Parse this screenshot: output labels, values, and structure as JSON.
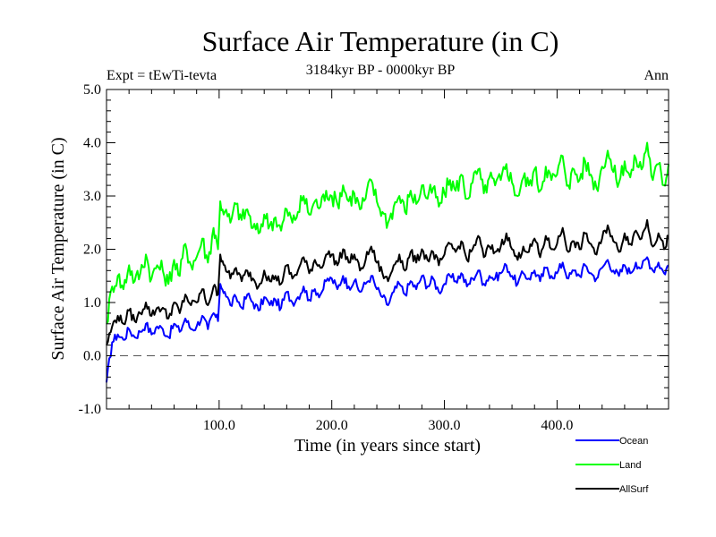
{
  "chart_data": {
    "type": "line",
    "title": "Surface Air Temperature (in C)",
    "subtitle": "3184kyr BP - 0000kyr BP",
    "left_annotation": "Expt = tEwTi-tevta",
    "right_annotation": "Ann",
    "xlabel": "Time (in years since start)",
    "ylabel": "Surface Air Temperature (in C)",
    "xlim": [
      0,
      499
    ],
    "ylim": [
      -1.0,
      5.0
    ],
    "xticks": [
      100,
      200,
      300,
      400
    ],
    "xtick_labels": [
      "100.0",
      "200.0",
      "300.0",
      "400.0"
    ],
    "x_minor_step": 20,
    "yticks": [
      -1.0,
      0.0,
      1.0,
      2.0,
      3.0,
      4.0,
      5.0
    ],
    "ytick_labels": [
      "-1.0",
      "0.0",
      "1.0",
      "2.0",
      "3.0",
      "4.0",
      "5.0"
    ],
    "y_minor_step": 0.2,
    "reference_line": {
      "y": 0.0,
      "style": "dashed",
      "color": "#555555"
    },
    "legend_placement": "bottom-right",
    "x": [
      0,
      5,
      10,
      15,
      20,
      25,
      30,
      35,
      40,
      45,
      50,
      55,
      60,
      65,
      70,
      75,
      80,
      85,
      90,
      95,
      99,
      101,
      105,
      110,
      115,
      120,
      125,
      130,
      135,
      140,
      145,
      150,
      155,
      160,
      165,
      170,
      175,
      180,
      185,
      190,
      195,
      200,
      205,
      210,
      215,
      220,
      225,
      230,
      235,
      240,
      245,
      250,
      255,
      260,
      265,
      270,
      275,
      280,
      285,
      290,
      295,
      300,
      305,
      310,
      315,
      320,
      325,
      330,
      335,
      340,
      345,
      350,
      355,
      360,
      365,
      370,
      375,
      380,
      385,
      390,
      395,
      400,
      405,
      410,
      415,
      420,
      425,
      430,
      435,
      440,
      445,
      450,
      455,
      460,
      465,
      470,
      475,
      480,
      485,
      490,
      495,
      499
    ],
    "series": [
      {
        "name": "Ocean",
        "color": "#0000ff",
        "values": [
          -0.5,
          0.25,
          0.4,
          0.3,
          0.5,
          0.35,
          0.45,
          0.6,
          0.4,
          0.55,
          0.5,
          0.35,
          0.6,
          0.45,
          0.7,
          0.5,
          0.55,
          0.75,
          0.5,
          0.8,
          0.65,
          1.35,
          1.2,
          0.95,
          1.1,
          0.9,
          1.15,
          1.0,
          0.85,
          1.1,
          0.95,
          1.05,
          0.9,
          1.2,
          1.0,
          1.1,
          1.3,
          1.05,
          1.25,
          1.15,
          1.4,
          1.45,
          1.25,
          1.5,
          1.3,
          1.4,
          1.2,
          1.35,
          1.5,
          1.25,
          1.1,
          0.95,
          1.2,
          1.35,
          1.15,
          1.4,
          1.25,
          1.5,
          1.3,
          1.45,
          1.2,
          1.35,
          1.5,
          1.4,
          1.55,
          1.3,
          1.45,
          1.6,
          1.35,
          1.5,
          1.45,
          1.55,
          1.7,
          1.5,
          1.35,
          1.55,
          1.45,
          1.6,
          1.4,
          1.65,
          1.5,
          1.55,
          1.75,
          1.45,
          1.6,
          1.5,
          1.7,
          1.55,
          1.45,
          1.65,
          1.8,
          1.6,
          1.5,
          1.7,
          1.55,
          1.75,
          1.65,
          1.85,
          1.6,
          1.75,
          1.55,
          1.7
        ]
      },
      {
        "name": "Land",
        "color": "#00ff00",
        "values": [
          0.6,
          1.3,
          1.5,
          1.25,
          1.7,
          1.4,
          1.55,
          1.9,
          1.45,
          1.7,
          1.6,
          1.35,
          1.8,
          1.5,
          2.1,
          1.7,
          1.85,
          2.2,
          1.75,
          2.4,
          2.0,
          2.9,
          2.7,
          2.5,
          2.85,
          2.55,
          2.75,
          2.4,
          2.3,
          2.65,
          2.45,
          2.6,
          2.35,
          2.75,
          2.5,
          2.7,
          3.0,
          2.65,
          2.9,
          2.8,
          3.1,
          3.0,
          2.85,
          3.2,
          2.9,
          3.05,
          2.75,
          2.95,
          3.3,
          2.9,
          2.7,
          2.5,
          2.8,
          3.0,
          2.7,
          3.1,
          2.85,
          3.2,
          2.95,
          3.15,
          2.8,
          3.05,
          3.3,
          3.1,
          3.4,
          2.95,
          3.25,
          3.5,
          3.05,
          3.35,
          3.2,
          3.3,
          3.6,
          3.25,
          3.0,
          3.35,
          3.2,
          3.5,
          3.1,
          3.55,
          3.3,
          3.4,
          3.75,
          3.2,
          3.5,
          3.3,
          3.65,
          3.4,
          3.15,
          3.55,
          3.85,
          3.45,
          3.25,
          3.65,
          3.35,
          3.7,
          3.5,
          4.0,
          3.3,
          3.6,
          3.2,
          3.6
        ]
      },
      {
        "name": "AllSurf",
        "color": "#000000",
        "values": [
          0.2,
          0.55,
          0.75,
          0.6,
          0.85,
          0.65,
          0.8,
          1.0,
          0.75,
          0.9,
          0.9,
          0.7,
          1.0,
          0.8,
          1.15,
          0.95,
          1.0,
          1.25,
          0.95,
          1.3,
          1.15,
          1.9,
          1.7,
          1.45,
          1.65,
          1.4,
          1.6,
          1.45,
          1.3,
          1.6,
          1.4,
          1.5,
          1.35,
          1.7,
          1.45,
          1.6,
          1.85,
          1.55,
          1.8,
          1.65,
          1.9,
          1.9,
          1.7,
          2.0,
          1.75,
          1.9,
          1.6,
          1.8,
          2.05,
          1.75,
          1.55,
          1.4,
          1.7,
          1.9,
          1.6,
          1.95,
          1.75,
          2.0,
          1.8,
          1.95,
          1.7,
          1.9,
          2.1,
          1.95,
          2.15,
          1.8,
          2.0,
          2.25,
          1.85,
          2.05,
          1.95,
          2.05,
          2.3,
          2.0,
          1.8,
          2.05,
          1.95,
          2.2,
          1.85,
          2.25,
          2.0,
          2.1,
          2.4,
          1.95,
          2.15,
          2.0,
          2.3,
          2.1,
          1.9,
          2.2,
          2.45,
          2.15,
          1.95,
          2.3,
          2.1,
          2.35,
          2.2,
          2.55,
          2.05,
          2.3,
          2.0,
          2.25
        ]
      }
    ]
  }
}
